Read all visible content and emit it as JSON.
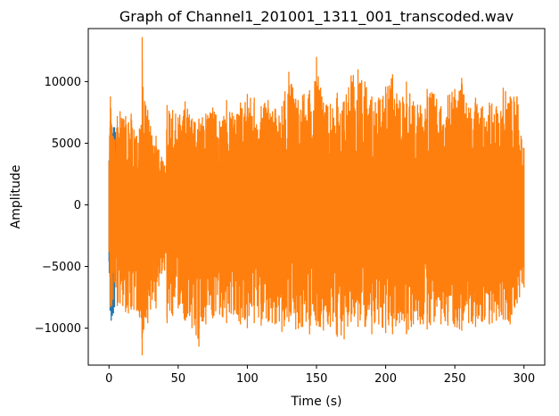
{
  "chart_data": {
    "type": "line",
    "title": "Graph of Channel1_201001_1311_001_transcoded.wav",
    "xlabel": "Time (s)",
    "ylabel": "Amplitude",
    "xlim": [
      -15,
      315
    ],
    "ylim": [
      -13000,
      14300
    ],
    "xticks": [
      0,
      50,
      100,
      150,
      200,
      250,
      300
    ],
    "xtick_labels": [
      "0",
      "50",
      "100",
      "150",
      "200",
      "250",
      "300"
    ],
    "yticks": [
      -10000,
      -5000,
      0,
      5000,
      10000
    ],
    "ytick_labels": [
      "−10000",
      "−5000",
      "0",
      "5000",
      "10000"
    ],
    "grid": false,
    "legend": "none",
    "series": [
      {
        "color": "#1f77b4",
        "x": [
          0,
          0.8,
          1.6,
          2.4,
          3.2,
          4.0,
          4.6
        ],
        "max": [
          3600,
          6300,
          6600,
          5800,
          6300,
          6300,
          5900
        ],
        "min": [
          -4600,
          -8600,
          -9400,
          -9000,
          -8800,
          -8300,
          -6200
        ]
      },
      {
        "color": "#ff7f0e",
        "x": [
          0,
          1,
          2,
          3,
          4,
          5,
          6,
          8,
          10,
          12,
          14,
          16,
          18,
          20,
          22,
          24,
          26,
          28,
          30,
          32,
          34,
          36,
          38,
          40,
          42,
          44,
          46,
          50,
          55,
          60,
          65,
          70,
          75,
          80,
          85,
          90,
          95,
          100,
          105,
          110,
          115,
          120,
          125,
          130,
          135,
          140,
          145,
          150,
          155,
          160,
          165,
          170,
          175,
          180,
          185,
          190,
          195,
          200,
          205,
          210,
          215,
          220,
          225,
          230,
          235,
          240,
          245,
          250,
          255,
          260,
          265,
          270,
          275,
          280,
          285,
          290,
          295,
          300
        ],
        "max": [
          3500,
          8800,
          6400,
          5600,
          5300,
          5400,
          7200,
          7600,
          7000,
          7200,
          6600,
          7400,
          6100,
          5600,
          6200,
          13600,
          8200,
          7700,
          6400,
          4800,
          5600,
          4500,
          3900,
          3200,
          8100,
          7400,
          7700,
          7100,
          8400,
          7000,
          7000,
          7400,
          7900,
          6800,
          8500,
          7200,
          8300,
          9000,
          8700,
          8000,
          8500,
          7800,
          8000,
          10800,
          8600,
          8900,
          9300,
          12000,
          8300,
          8200,
          9100,
          8400,
          10500,
          11000,
          10000,
          8800,
          8700,
          9600,
          10600,
          8500,
          10000,
          8400,
          8100,
          9400,
          9000,
          8000,
          8900,
          9400,
          10300,
          7900,
          8700,
          8000,
          8300,
          8000,
          9500,
          8800,
          8800,
          4600
        ],
        "min": [
          -3800,
          -8300,
          -8200,
          -7700,
          -6300,
          -6700,
          -8200,
          -8000,
          -8200,
          -8700,
          -8800,
          -8500,
          -8500,
          -8600,
          -9000,
          -12200,
          -9100,
          -9600,
          -8500,
          -7100,
          -8400,
          -6600,
          -5600,
          -5100,
          -9600,
          -8600,
          -9000,
          -8400,
          -9400,
          -10000,
          -11500,
          -9700,
          -9200,
          -8900,
          -9600,
          -8900,
          -9700,
          -10000,
          -9600,
          -9800,
          -9500,
          -9700,
          -10300,
          -9500,
          -10100,
          -9900,
          -10500,
          -9800,
          -10200,
          -9900,
          -10700,
          -10900,
          -9500,
          -9900,
          -9900,
          -10500,
          -9700,
          -10400,
          -10500,
          -9600,
          -10500,
          -9700,
          -9700,
          -10100,
          -9500,
          -9700,
          -9800,
          -9900,
          -10200,
          -9600,
          -9900,
          -9500,
          -9700,
          -9400,
          -9300,
          -9700,
          -8000,
          -6700
        ]
      }
    ]
  }
}
